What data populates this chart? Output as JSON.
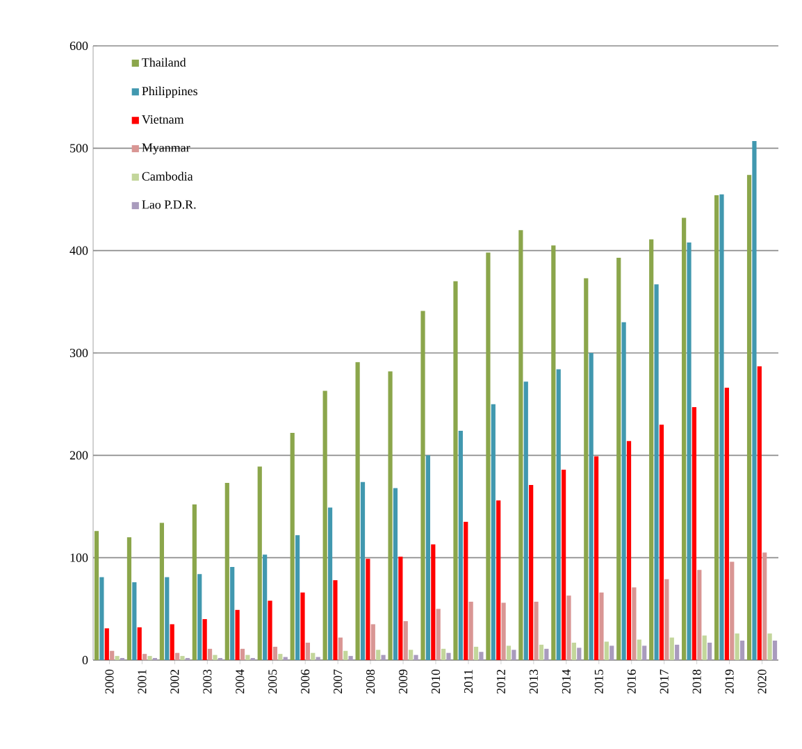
{
  "chart_data": {
    "type": "bar",
    "categories": [
      "2000",
      "2001",
      "2002",
      "2003",
      "2004",
      "2005",
      "2006",
      "2007",
      "2008",
      "2009",
      "2010",
      "2011",
      "2012",
      "2013",
      "2014",
      "2015",
      "2016",
      "2017",
      "2018",
      "2019",
      "2020"
    ],
    "series": [
      {
        "name": "Thailand",
        "color": "#8ba64b",
        "values": [
          126,
          120,
          134,
          152,
          173,
          189,
          222,
          263,
          291,
          282,
          341,
          370,
          398,
          420,
          405,
          373,
          393,
          411,
          432,
          454,
          474
        ]
      },
      {
        "name": "Philippines",
        "color": "#4198af",
        "values": [
          81,
          76,
          81,
          84,
          91,
          103,
          122,
          149,
          174,
          168,
          200,
          224,
          250,
          272,
          284,
          300,
          330,
          367,
          408,
          455,
          507
        ]
      },
      {
        "name": "Vietnam",
        "color": "#ff0000",
        "values": [
          31,
          32,
          35,
          40,
          49,
          58,
          66,
          78,
          99,
          101,
          113,
          135,
          156,
          171,
          186,
          199,
          214,
          230,
          247,
          266,
          287
        ]
      },
      {
        "name": "Myanmar",
        "color": "#d99694",
        "values": [
          9,
          6,
          7,
          11,
          11,
          13,
          17,
          22,
          35,
          38,
          50,
          57,
          56,
          57,
          63,
          66,
          71,
          79,
          88,
          96,
          105
        ]
      },
      {
        "name": "Cambodia",
        "color": "#c3d69b",
        "values": [
          4,
          4,
          4,
          5,
          5,
          6,
          7,
          9,
          10,
          10,
          11,
          13,
          14,
          15,
          17,
          18,
          20,
          22,
          24,
          26,
          26
        ]
      },
      {
        "name": "Lao P.D.R.",
        "color": "#a99bbd",
        "values": [
          2,
          2,
          2,
          2,
          2,
          3,
          3,
          4,
          5,
          5,
          7,
          8,
          10,
          11,
          12,
          14,
          14,
          15,
          17,
          19,
          19
        ]
      }
    ],
    "ylim": [
      0,
      600
    ],
    "yticks": [
      0,
      100,
      200,
      300,
      400,
      500,
      600
    ],
    "grid": "y",
    "legend": "top left"
  }
}
